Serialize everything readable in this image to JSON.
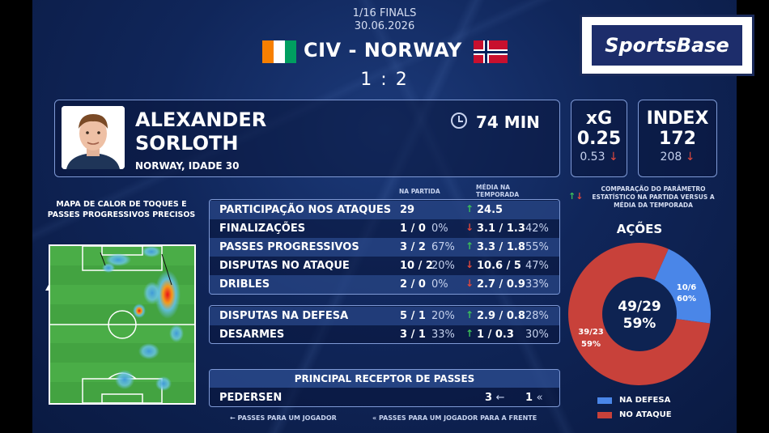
{
  "header": {
    "round": "1/16 FINALS",
    "date": "30.06.2026",
    "match": "CIV - NORWAY",
    "score": "1 : 2"
  },
  "logo": {
    "text": "SportsBase",
    "colors": {
      "bg": "#1d2d6b",
      "frame": "#ffffff"
    }
  },
  "player": {
    "first_name": "ALEXANDER",
    "last_name": "SORLOTH",
    "info": "NORWAY, IDADE 30",
    "minutes": "74 MIN",
    "clock_icon": "clock-icon"
  },
  "kpis": {
    "xg": {
      "title": "xG",
      "value": "0.25",
      "avg": "0.53",
      "trend": "↓"
    },
    "index": {
      "title": "INDEX",
      "value": "172",
      "avg": "208",
      "trend": "↓"
    }
  },
  "heatmap": {
    "title_line1": "MAPA DE CALOR DE TOQUES E",
    "title_line2": "PASSES PROGRESSIVOS PRECISOS"
  },
  "table": {
    "col_match": "NA PARTIDA",
    "col_season_1": "MÉDIA NA",
    "col_season_2": "TEMPORADA",
    "attack": [
      {
        "label": "PARTICIPAÇÃO NOS ATAQUES",
        "match": "29",
        "match_pct": "",
        "trend": "↑",
        "season": "24.5",
        "season_pct": ""
      },
      {
        "label": "FINALIZAÇÕES",
        "match": "1 / 0",
        "match_pct": "0%",
        "trend": "↓",
        "season": "3.1 / 1.3",
        "season_pct": "42%"
      },
      {
        "label": "PASSES PROGRESSIVOS",
        "match": "3 / 2",
        "match_pct": "67%",
        "trend": "↑",
        "season": "3.3 / 1.8",
        "season_pct": "55%"
      },
      {
        "label": "DISPUTAS NO ATAQUE",
        "match": "10 / 2",
        "match_pct": "20%",
        "trend": "↓",
        "season": "10.6 / 5",
        "season_pct": "47%"
      },
      {
        "label": "DRIBLES",
        "match": "2 / 0",
        "match_pct": "0%",
        "trend": "↓",
        "season": "2.7 / 0.9",
        "season_pct": "33%"
      }
    ],
    "defense": [
      {
        "label": "DISPUTAS NA DEFESA",
        "match": "5 / 1",
        "match_pct": "20%",
        "trend": "↑",
        "season": "2.9 / 0.8",
        "season_pct": "28%"
      },
      {
        "label": "DESARMES",
        "match": "3 / 1",
        "match_pct": "33%",
        "trend": "↑",
        "season": "1 / 0.3",
        "season_pct": "30%"
      }
    ]
  },
  "receiver": {
    "title": "PRINCIPAL RECEPTOR DE PASSES",
    "name": "PEDERSEN",
    "passes": "3",
    "passes_icon": "←",
    "forward": "1",
    "forward_icon": "«"
  },
  "legend_bottom": {
    "passes": "PASSES PARA UM JOGADOR",
    "forward": "PASSES PARA UM JOGADOR PARA A FRENTE"
  },
  "comparison_note": {
    "arrows": "↑↓",
    "line1": "COMPARAÇÃO DO PARÂMETRO",
    "line2": "ESTATÍSTICO NA PARTIDA VERSUS A",
    "line3": "MÉDIA DA TEMPORADA"
  },
  "actions": {
    "title": "AÇÕES",
    "center_value": "49/29",
    "center_pct": "59%",
    "defense": {
      "value": "10/6",
      "pct": "60%",
      "total": 10,
      "color": "#4a86e8"
    },
    "attack": {
      "value": "39/23",
      "pct": "59%",
      "total": 39,
      "color": "#c8413a"
    },
    "legend_defense": "NA DEFESA",
    "legend_attack": "NO ATAQUE"
  }
}
